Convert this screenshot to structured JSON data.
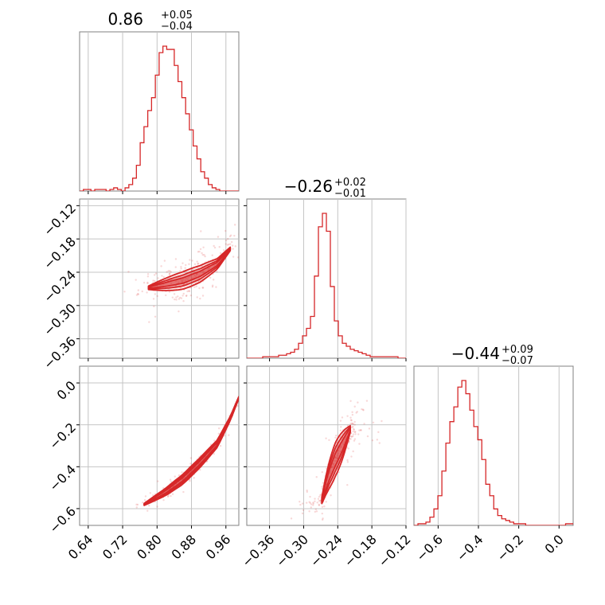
{
  "colors": {
    "series": "#d62728",
    "grid": "#c4c4c4",
    "frame": "#808080"
  },
  "chart_data": [
    {
      "type": "histogram",
      "panel": "diag-0",
      "title": {
        "median": "0.86",
        "plus": "+0.05",
        "minus": "−0.04"
      },
      "xlim": [
        0.62,
        0.99
      ],
      "grid": true,
      "bin_start": 0.62,
      "bin_width": 0.0088,
      "counts": [
        0,
        1,
        1,
        0,
        1,
        1,
        1,
        0,
        1,
        2,
        1,
        0,
        2,
        4,
        8,
        16,
        30,
        40,
        50,
        58,
        72,
        86,
        90,
        88,
        88,
        78,
        68,
        58,
        48,
        38,
        28,
        20,
        12,
        8,
        4,
        2,
        1,
        0,
        0,
        0,
        0,
        0
      ]
    },
    {
      "type": "histogram",
      "panel": "diag-1",
      "title": {
        "median": "−0.26",
        "plus": "+0.02",
        "minus": "−0.01"
      },
      "xlim": [
        -0.4,
        -0.12
      ],
      "x_ticks": [
        "−0.36",
        "−0.30",
        "−0.24",
        "−0.18",
        "−0.12"
      ],
      "grid": true,
      "bin_start": -0.4,
      "bin_width": 0.007,
      "counts": [
        0,
        0,
        0,
        0,
        1,
        1,
        1,
        1,
        2,
        2,
        3,
        4,
        6,
        10,
        15,
        20,
        28,
        55,
        88,
        97,
        85,
        48,
        25,
        15,
        10,
        8,
        6,
        5,
        4,
        3,
        2,
        1,
        1,
        1,
        1,
        1,
        1,
        1,
        0,
        0
      ]
    },
    {
      "type": "histogram",
      "panel": "diag-2",
      "title": {
        "median": "−0.44",
        "plus": "+0.09",
        "minus": "−0.07"
      },
      "xlim": [
        -0.72,
        0.07
      ],
      "x_ticks": [
        "−0.6",
        "−0.4",
        "−0.2",
        "0.0"
      ],
      "grid": true,
      "bin_start": -0.72,
      "bin_width": 0.0198,
      "counts": [
        0,
        1,
        1,
        2,
        5,
        10,
        18,
        33,
        50,
        63,
        72,
        84,
        88,
        80,
        70,
        60,
        52,
        40,
        25,
        18,
        10,
        6,
        4,
        3,
        2,
        1,
        1,
        1,
        0,
        0,
        0,
        0,
        0,
        0,
        0,
        0,
        0,
        0,
        1,
        1
      ]
    },
    {
      "type": "scatter",
      "panel": "corner-1-0",
      "description": "2D posterior with filled density contours",
      "xlim": [
        0.62,
        0.99
      ],
      "ylim": [
        -0.395,
        -0.108
      ],
      "x_ticks": [
        "0.64",
        "0.72",
        "0.80",
        "0.88",
        "0.96"
      ],
      "y_ticks": [
        "−0.12",
        "−0.18",
        "−0.24",
        "−0.30",
        "−0.36"
      ],
      "grid": true,
      "trend": [
        [
          0.78,
          -0.268
        ],
        [
          0.82,
          -0.262
        ],
        [
          0.86,
          -0.255
        ],
        [
          0.9,
          -0.243
        ],
        [
          0.94,
          -0.225
        ],
        [
          0.97,
          -0.198
        ]
      ],
      "contour_bands": [
        {
          "level": 0.39,
          "half_width": 0.005
        },
        {
          "level": 0.86,
          "half_width": 0.01
        },
        {
          "level": 0.99,
          "half_width": 0.016
        }
      ],
      "sample_spread": [
        0.03,
        0.02
      ]
    },
    {
      "type": "scatter",
      "panel": "corner-2-0",
      "description": "2D posterior with filled density contours",
      "xlim": [
        0.62,
        0.99
      ],
      "ylim": [
        -0.68,
        0.08
      ],
      "x_ticks": [
        "0.64",
        "0.72",
        "0.80",
        "0.88",
        "0.96"
      ],
      "y_ticks": [
        "0.0",
        "−0.2",
        "−0.4",
        "−0.6"
      ],
      "grid": true,
      "trend": [
        [
          0.77,
          -0.58
        ],
        [
          0.82,
          -0.52
        ],
        [
          0.86,
          -0.46
        ],
        [
          0.9,
          -0.38
        ],
        [
          0.94,
          -0.29
        ],
        [
          0.97,
          -0.17
        ],
        [
          0.99,
          -0.07
        ]
      ],
      "contour_bands": [
        {
          "level": 0.39,
          "half_width": 0.008
        },
        {
          "level": 0.86,
          "half_width": 0.016
        },
        {
          "level": 0.99,
          "half_width": 0.024
        }
      ],
      "sample_spread": [
        0.012,
        0.02
      ]
    },
    {
      "type": "scatter",
      "panel": "corner-2-1",
      "description": "2D posterior with filled density contours",
      "xlim": [
        -0.4,
        -0.12
      ],
      "ylim": [
        -0.68,
        0.08
      ],
      "x_ticks": [
        "−0.36",
        "−0.30",
        "−0.24",
        "−0.18",
        "−0.12"
      ],
      "y_ticks": [],
      "grid": true,
      "trend": [
        [
          -0.268,
          -0.56
        ],
        [
          -0.262,
          -0.5
        ],
        [
          -0.255,
          -0.44
        ],
        [
          -0.245,
          -0.37
        ],
        [
          -0.232,
          -0.3
        ],
        [
          -0.218,
          -0.22
        ]
      ],
      "contour_bands": [
        {
          "level": 0.39,
          "half_width": 0.03
        },
        {
          "level": 0.86,
          "half_width": 0.055
        },
        {
          "level": 0.99,
          "half_width": 0.08
        }
      ],
      "sample_spread": [
        0.025,
        0.06
      ]
    }
  ]
}
